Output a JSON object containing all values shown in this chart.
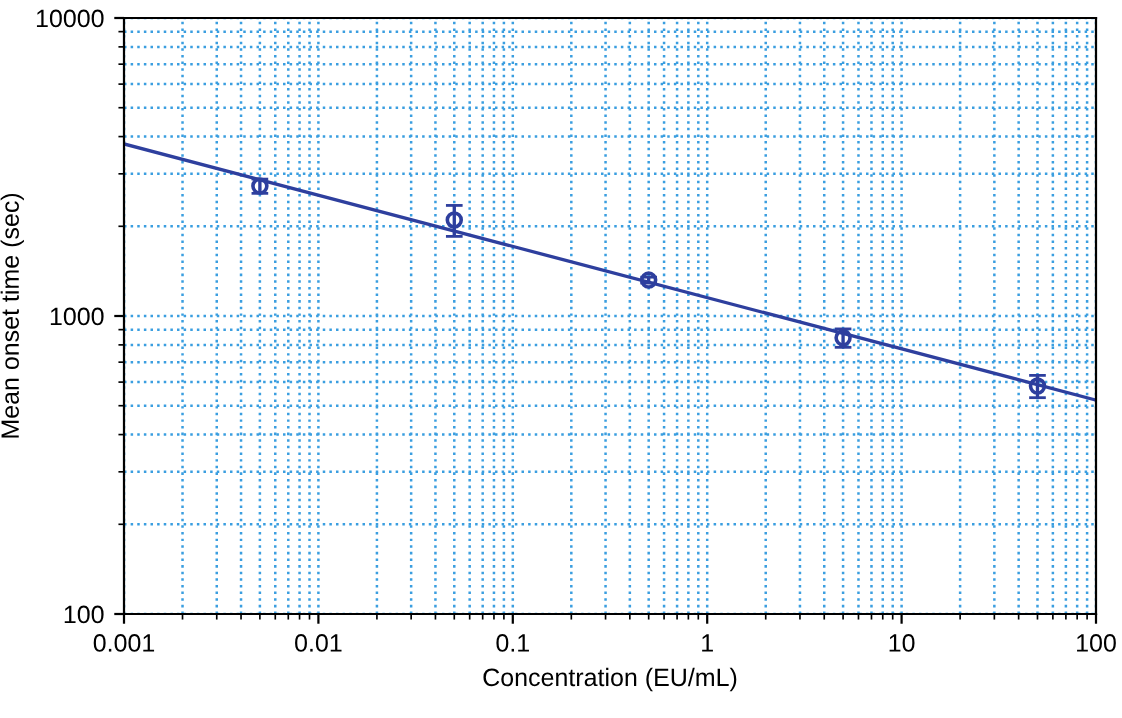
{
  "chart_data": {
    "type": "scatter",
    "xlabel": "Concentration (EU/mL)",
    "ylabel": "Mean onset time (sec)",
    "log": "xy",
    "xlim": [
      0.001,
      100
    ],
    "ylim": [
      100,
      10000
    ],
    "xticks": [
      0.001,
      0.01,
      0.1,
      1,
      10,
      100
    ],
    "yticks": [
      100,
      1000,
      10000
    ],
    "grid": true,
    "marker": "circle",
    "series": [
      {
        "color": "#2e3f9e",
        "x": [
          0.005,
          0.05,
          0.5,
          5,
          50
        ],
        "values": [
          2730,
          2100,
          1320,
          845,
          582
        ],
        "errors": [
          150,
          250,
          30,
          60,
          50
        ]
      },
      {
        "type": "line",
        "color": "#2e3f9e",
        "x": [
          0.001,
          100
        ],
        "values": [
          3780,
          522
        ],
        "marker": "none",
        "line_style": "solid"
      }
    ]
  }
}
